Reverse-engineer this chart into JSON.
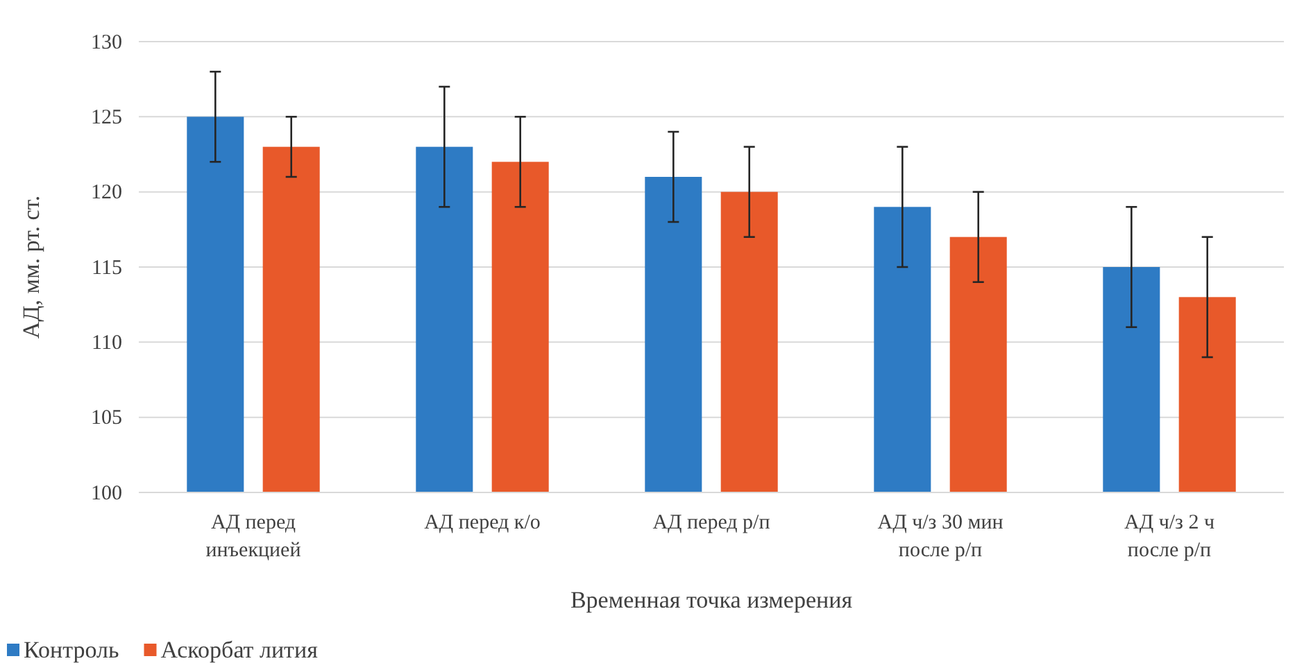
{
  "chart_data": {
    "type": "bar",
    "categories": [
      "АД перед инъекцией",
      "АД перед к/о",
      "АД перед р/п",
      "АД ч/з 30 мин после р/п",
      "АД ч/з 2 ч после р/п"
    ],
    "series": [
      {
        "name": "Контроль",
        "color": "#2e7bc4",
        "values": [
          125,
          123,
          121,
          119,
          115
        ],
        "errors": [
          3,
          4,
          3,
          4,
          4
        ]
      },
      {
        "name": "Аскорбат лития",
        "color": "#e8592a",
        "values": [
          123,
          122,
          120,
          117,
          113
        ],
        "errors": [
          2,
          3,
          3,
          3,
          4
        ]
      }
    ],
    "xlabel": "Временная точка измерения",
    "ylabel": "АД, мм. рт. ст.",
    "ylim": [
      100,
      130
    ],
    "yticks": [
      100,
      105,
      110,
      115,
      120,
      125,
      130
    ],
    "grid": "y",
    "legend": "bottom left"
  }
}
